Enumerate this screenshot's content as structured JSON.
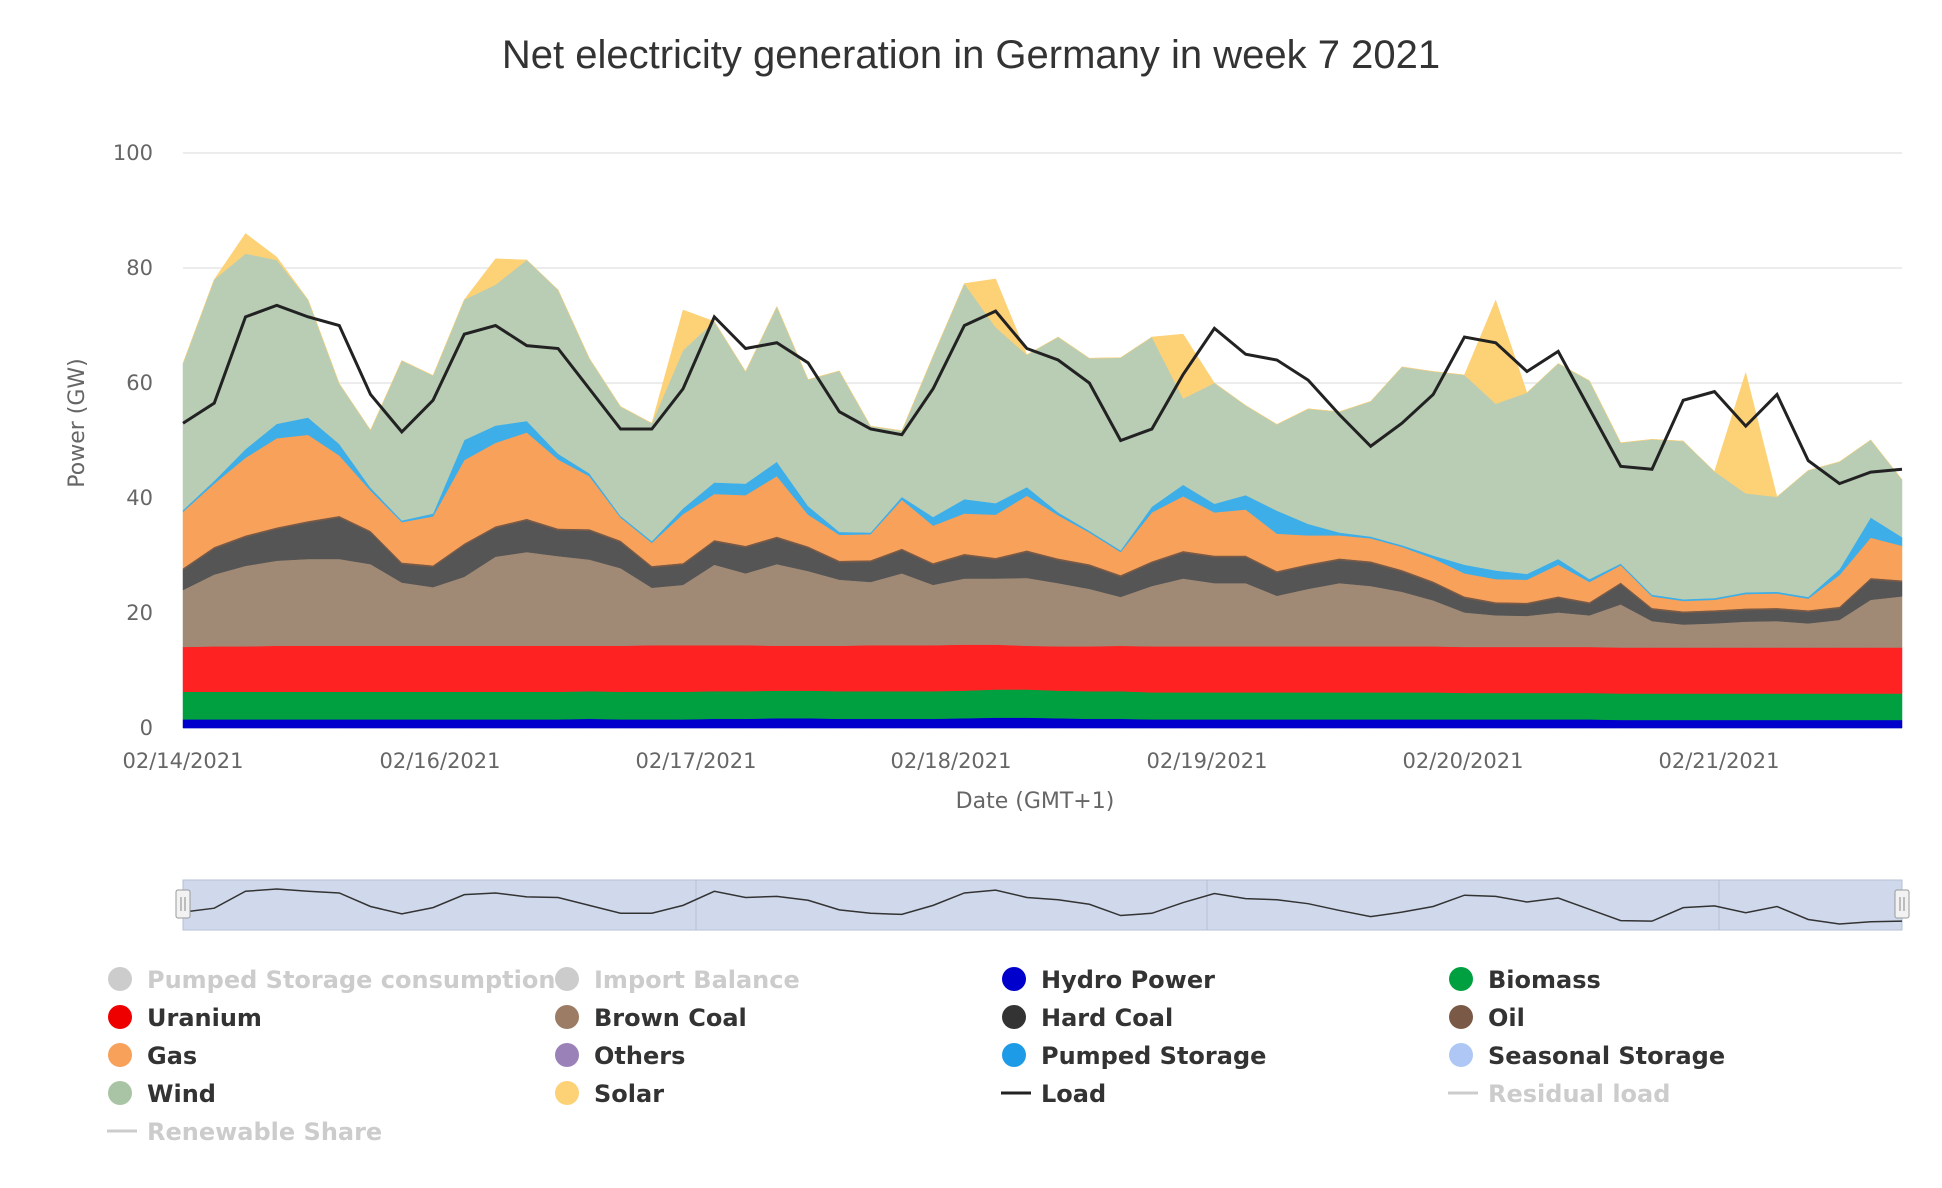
{
  "chart_data": {
    "type": "area",
    "title": "Net electricity generation in Germany in week 7 2021",
    "xlabel": "Date (GMT+1)",
    "ylabel": "Power (GW)",
    "ylim": [
      0,
      100
    ],
    "yticks": [
      0,
      20,
      40,
      60,
      80,
      100
    ],
    "xlim": [
      "2021-02-14 00:00",
      "2021-02-21 00:00"
    ],
    "xticks": [
      {
        "t": 0,
        "label": "02/14/2021"
      },
      {
        "t": 1,
        "label": "02/16/2021"
      },
      {
        "t": 2,
        "label": "02/17/2021"
      },
      {
        "t": 3,
        "label": "02/18/2021"
      },
      {
        "t": 4,
        "label": "02/19/2021"
      },
      {
        "t": 5,
        "label": "02/20/2021"
      },
      {
        "t": 6,
        "label": "02/21/2021"
      }
    ],
    "stacking": "cumulative",
    "grid": true,
    "legend_position": "bottom",
    "x": [
      "2021-02-14 00:00",
      "2021-02-14 06:00",
      "2021-02-14 09:00",
      "2021-02-14 12:00",
      "2021-02-14 15:00",
      "2021-02-14 18:00",
      "2021-02-14 21:00",
      "2021-02-15 00:00",
      "2021-02-15 03:00",
      "2021-02-15 06:00",
      "2021-02-15 09:00",
      "2021-02-15 12:00",
      "2021-02-15 15:00",
      "2021-02-15 18:00",
      "2021-02-15 21:00",
      "2021-02-16 00:00",
      "2021-02-16 03:00",
      "2021-02-16 06:00",
      "2021-02-16 09:00",
      "2021-02-16 12:00",
      "2021-02-16 15:00",
      "2021-02-16 18:00",
      "2021-02-16 21:00",
      "2021-02-17 00:00",
      "2021-02-17 03:00",
      "2021-02-17 06:00",
      "2021-02-17 09:00",
      "2021-02-17 12:00",
      "2021-02-17 15:00",
      "2021-02-17 18:00",
      "2021-02-17 21:00",
      "2021-02-18 00:00",
      "2021-02-18 03:00",
      "2021-02-18 06:00",
      "2021-02-18 09:00",
      "2021-02-18 12:00",
      "2021-02-18 15:00",
      "2021-02-18 18:00",
      "2021-02-18 21:00",
      "2021-02-19 00:00",
      "2021-02-19 03:00",
      "2021-02-19 06:00",
      "2021-02-19 09:00",
      "2021-02-19 12:00",
      "2021-02-19 15:00",
      "2021-02-19 18:00",
      "2021-02-19 21:00",
      "2021-02-20 00:00",
      "2021-02-20 03:00",
      "2021-02-20 06:00",
      "2021-02-20 09:00",
      "2021-02-20 12:00",
      "2021-02-20 15:00",
      "2021-02-20 18:00",
      "2021-02-20 21:00",
      "2021-02-21 00:00"
    ],
    "series": [
      {
        "name": "Hydro Power",
        "color": "#0000cc",
        "values": [
          1.5,
          1.5,
          1.5,
          1.5,
          1.5,
          1.5,
          1.5,
          1.5,
          1.5,
          1.5,
          1.5,
          1.5,
          1.5,
          1.6,
          1.5,
          1.5,
          1.5,
          1.6,
          1.6,
          1.7,
          1.7,
          1.6,
          1.6,
          1.6,
          1.6,
          1.7,
          1.8,
          1.8,
          1.7,
          1.6,
          1.6,
          1.5,
          1.5,
          1.5,
          1.5,
          1.5,
          1.5,
          1.5,
          1.5,
          1.5,
          1.5,
          1.5,
          1.5,
          1.5,
          1.5,
          1.5,
          1.4,
          1.4,
          1.4,
          1.4,
          1.4,
          1.4,
          1.4,
          1.4,
          1.4,
          1.4
        ]
      },
      {
        "name": "Biomass",
        "color": "#00a040",
        "values": [
          4.8,
          4.8,
          4.8,
          4.8,
          4.8,
          4.8,
          4.8,
          4.8,
          4.8,
          4.8,
          4.8,
          4.8,
          4.8,
          4.8,
          4.8,
          4.8,
          4.8,
          4.8,
          4.8,
          4.8,
          4.8,
          4.8,
          4.8,
          4.8,
          4.8,
          4.8,
          4.9,
          4.9,
          4.8,
          4.8,
          4.8,
          4.7,
          4.7,
          4.7,
          4.7,
          4.7,
          4.7,
          4.7,
          4.7,
          4.7,
          4.7,
          4.6,
          4.6,
          4.6,
          4.6,
          4.6,
          4.6,
          4.6,
          4.6,
          4.6,
          4.6,
          4.6,
          4.6,
          4.6,
          4.6,
          4.6
        ]
      },
      {
        "name": "Uranium",
        "color": "#ff2222",
        "values": [
          7.8,
          7.9,
          7.9,
          8.0,
          8.0,
          8.0,
          8.0,
          8.0,
          8.0,
          8.0,
          8.0,
          8.0,
          8.0,
          7.9,
          8.0,
          8.1,
          8.1,
          8.0,
          8.0,
          7.8,
          7.8,
          7.9,
          8.0,
          8.0,
          8.0,
          8.0,
          7.8,
          7.6,
          7.7,
          7.8,
          7.9,
          8.0,
          8.0,
          8.0,
          8.0,
          8.0,
          8.0,
          8.0,
          8.0,
          8.0,
          8.0,
          8.0,
          8.0,
          8.0,
          8.0,
          8.0,
          8.0,
          8.0,
          8.0,
          8.0,
          8.0,
          8.0,
          8.0,
          8.0,
          8.0,
          8.0
        ]
      },
      {
        "name": "Brown Coal",
        "color": "#a08a76",
        "values": [
          9.9,
          12.5,
          14.0,
          14.8,
          15.1,
          15.1,
          14.2,
          11.0,
          10.2,
          12.0,
          15.5,
          16.3,
          15.6,
          15.0,
          13.5,
          10.0,
          10.5,
          14.0,
          12.5,
          14.2,
          13.0,
          11.5,
          11.0,
          12.5,
          10.5,
          11.5,
          11.5,
          11.8,
          11.0,
          10.0,
          8.5,
          10.5,
          11.8,
          11.0,
          11.0,
          8.8,
          10.0,
          11.0,
          10.5,
          9.5,
          8.0,
          6.0,
          5.5,
          5.4,
          6.0,
          5.5,
          7.5,
          4.6,
          4.0,
          4.2,
          4.5,
          4.6,
          4.2,
          4.8,
          8.3,
          8.9
        ]
      },
      {
        "name": "Hard Coal",
        "color": "#555555",
        "values": [
          3.5,
          4.5,
          5.0,
          5.5,
          6.3,
          7.2,
          5.5,
          3.2,
          3.5,
          5.5,
          5.0,
          5.5,
          4.5,
          5.0,
          4.5,
          3.5,
          3.5,
          4.0,
          4.5,
          4.5,
          4.0,
          3.0,
          3.5,
          4.0,
          3.5,
          4.0,
          3.3,
          4.5,
          4.0,
          4.0,
          3.5,
          4.0,
          4.5,
          4.5,
          4.5,
          4.0,
          4.0,
          4.0,
          4.0,
          3.5,
          3.0,
          2.5,
          2.0,
          2.0,
          2.5,
          2.0,
          3.5,
          2.0,
          2.0,
          2.0,
          2.0,
          2.0,
          2.0,
          2.0,
          3.5,
          2.5
        ]
      },
      {
        "name": "Oil",
        "color": "#7a5a46",
        "values": [
          0.3,
          0.3,
          0.3,
          0.3,
          0.3,
          0.3,
          0.3,
          0.3,
          0.3,
          0.3,
          0.3,
          0.3,
          0.3,
          0.3,
          0.3,
          0.3,
          0.3,
          0.3,
          0.3,
          0.3,
          0.3,
          0.3,
          0.3,
          0.3,
          0.3,
          0.3,
          0.3,
          0.3,
          0.3,
          0.3,
          0.3,
          0.3,
          0.3,
          0.3,
          0.3,
          0.3,
          0.3,
          0.3,
          0.3,
          0.3,
          0.3,
          0.3,
          0.3,
          0.3,
          0.3,
          0.3,
          0.3,
          0.3,
          0.3,
          0.3,
          0.3,
          0.3,
          0.3,
          0.3,
          0.3,
          0.3
        ]
      },
      {
        "name": "Gas",
        "color": "#f7a15a",
        "values": [
          9.8,
          11.0,
          13.5,
          15.5,
          15.0,
          10.5,
          7.0,
          7.0,
          8.5,
          14.5,
          14.5,
          15.0,
          12.0,
          9.2,
          4.0,
          4.0,
          8.5,
          8.0,
          8.8,
          10.5,
          5.5,
          4.5,
          4.5,
          8.5,
          6.5,
          7.0,
          7.5,
          9.5,
          7.5,
          5.5,
          4.0,
          8.5,
          9.5,
          7.5,
          8.0,
          6.5,
          5.0,
          4.0,
          4.0,
          4.0,
          4.0,
          4.0,
          4.0,
          4.0,
          5.5,
          3.5,
          3.0,
          2.0,
          1.8,
          1.8,
          2.5,
          2.5,
          2.0,
          5.5,
          7.0,
          6.0
        ]
      },
      {
        "name": "Pumped Storage",
        "color": "#3daee8",
        "values": [
          0.3,
          0.5,
          1.5,
          2.5,
          3.0,
          2.0,
          0.5,
          0.3,
          0.5,
          3.5,
          3.0,
          2.0,
          1.0,
          0.5,
          0.3,
          0.3,
          1.0,
          2.0,
          2.0,
          2.5,
          1.5,
          0.5,
          0.3,
          0.5,
          1.5,
          2.5,
          2.0,
          1.5,
          0.5,
          0.3,
          0.3,
          1.0,
          2.0,
          1.5,
          2.5,
          4.0,
          2.0,
          0.5,
          0.3,
          0.3,
          0.5,
          1.5,
          1.5,
          1.0,
          1.0,
          0.5,
          0.3,
          0.3,
          0.3,
          0.3,
          0.3,
          0.3,
          0.3,
          1.0,
          3.5,
          1.5
        ]
      },
      {
        "name": "Wind",
        "color": "#b8cdb4",
        "values": [
          25.5,
          35.0,
          34.0,
          28.5,
          20.5,
          10.5,
          10.0,
          27.8,
          24.0,
          24.4,
          24.5,
          28.0,
          28.5,
          20.0,
          19.0,
          20.5,
          27.5,
          28.0,
          19.5,
          27.0,
          22.0,
          28.0,
          18.5,
          11.5,
          28.0,
          37.5,
          30.6,
          23.0,
          30.5,
          30.0,
          33.5,
          29.5,
          15.0,
          21.0,
          15.6,
          15.0,
          20.0,
          21.0,
          23.5,
          31.0,
          32.0,
          33.0,
          29.0,
          31.5,
          34.0,
          34.5,
          21.0,
          27.0,
          27.5,
          22.0,
          17.2,
          16.5,
          22.0,
          18.7,
          13.5,
          10.0
        ]
      },
      {
        "name": "Solar",
        "color": "#fdd176",
        "values": [
          0,
          0,
          3.5,
          0.5,
          0,
          0,
          0,
          0,
          0,
          0,
          4.5,
          0,
          0,
          0,
          0,
          0,
          7.0,
          0,
          0,
          0,
          0,
          0,
          0,
          0,
          0,
          0,
          8.4,
          0,
          0,
          0,
          0,
          0,
          11.2,
          0,
          0,
          0,
          0,
          0,
          0,
          0,
          0,
          0,
          18.0,
          0,
          0,
          0,
          0,
          0,
          0,
          0,
          21.0,
          0,
          0,
          0,
          0,
          0
        ]
      }
    ],
    "load": {
      "name": "Load",
      "color": "#222222",
      "values": [
        53.0,
        56.5,
        71.5,
        73.5,
        71.5,
        70.0,
        58.0,
        51.5,
        57.0,
        68.5,
        70.0,
        66.5,
        66.0,
        59.0,
        52.0,
        52.0,
        59.0,
        71.5,
        66.0,
        67.0,
        63.5,
        55.0,
        52.0,
        51.0,
        59.0,
        70.0,
        72.5,
        66.0,
        64.0,
        60.0,
        50.0,
        52.0,
        61.5,
        69.5,
        65.0,
        64.0,
        60.5,
        54.5,
        49.0,
        53.0,
        58.0,
        68.0,
        67.0,
        62.0,
        65.5,
        55.5,
        45.5,
        45.0,
        57.0,
        58.5,
        52.5,
        58.0,
        46.5,
        42.5,
        44.5,
        45.0
      ]
    },
    "legend": [
      {
        "label": "Pumped Storage consumption",
        "color": "#cccccc",
        "kind": "dot",
        "active": false
      },
      {
        "label": "Import Balance",
        "color": "#cccccc",
        "kind": "dot",
        "active": false
      },
      {
        "label": "Hydro Power",
        "color": "#0000cc",
        "kind": "dot",
        "active": true
      },
      {
        "label": "Biomass",
        "color": "#00a040",
        "kind": "dot",
        "active": true
      },
      {
        "label": "Uranium",
        "color": "#ee0000",
        "kind": "dot",
        "active": true
      },
      {
        "label": "Brown Coal",
        "color": "#9c7c64",
        "kind": "dot",
        "active": true
      },
      {
        "label": "Hard Coal",
        "color": "#333333",
        "kind": "dot",
        "active": true
      },
      {
        "label": "Oil",
        "color": "#7a5a46",
        "kind": "dot",
        "active": true
      },
      {
        "label": "Gas",
        "color": "#f7a15a",
        "kind": "dot",
        "active": true
      },
      {
        "label": "Others",
        "color": "#9a82b8",
        "kind": "dot",
        "active": true
      },
      {
        "label": "Pumped Storage",
        "color": "#1e9be6",
        "kind": "dot",
        "active": true
      },
      {
        "label": "Seasonal Storage",
        "color": "#aec7f5",
        "kind": "dot",
        "active": true
      },
      {
        "label": "Wind",
        "color": "#a9c4a4",
        "kind": "dot",
        "active": true
      },
      {
        "label": "Solar",
        "color": "#fdd176",
        "kind": "dot",
        "active": true
      },
      {
        "label": "Load",
        "color": "#222222",
        "kind": "line",
        "active": true
      },
      {
        "label": "Residual load",
        "color": "#cccccc",
        "kind": "line",
        "active": false
      },
      {
        "label": "Renewable Share",
        "color": "#cccccc",
        "kind": "line",
        "active": false
      }
    ]
  }
}
